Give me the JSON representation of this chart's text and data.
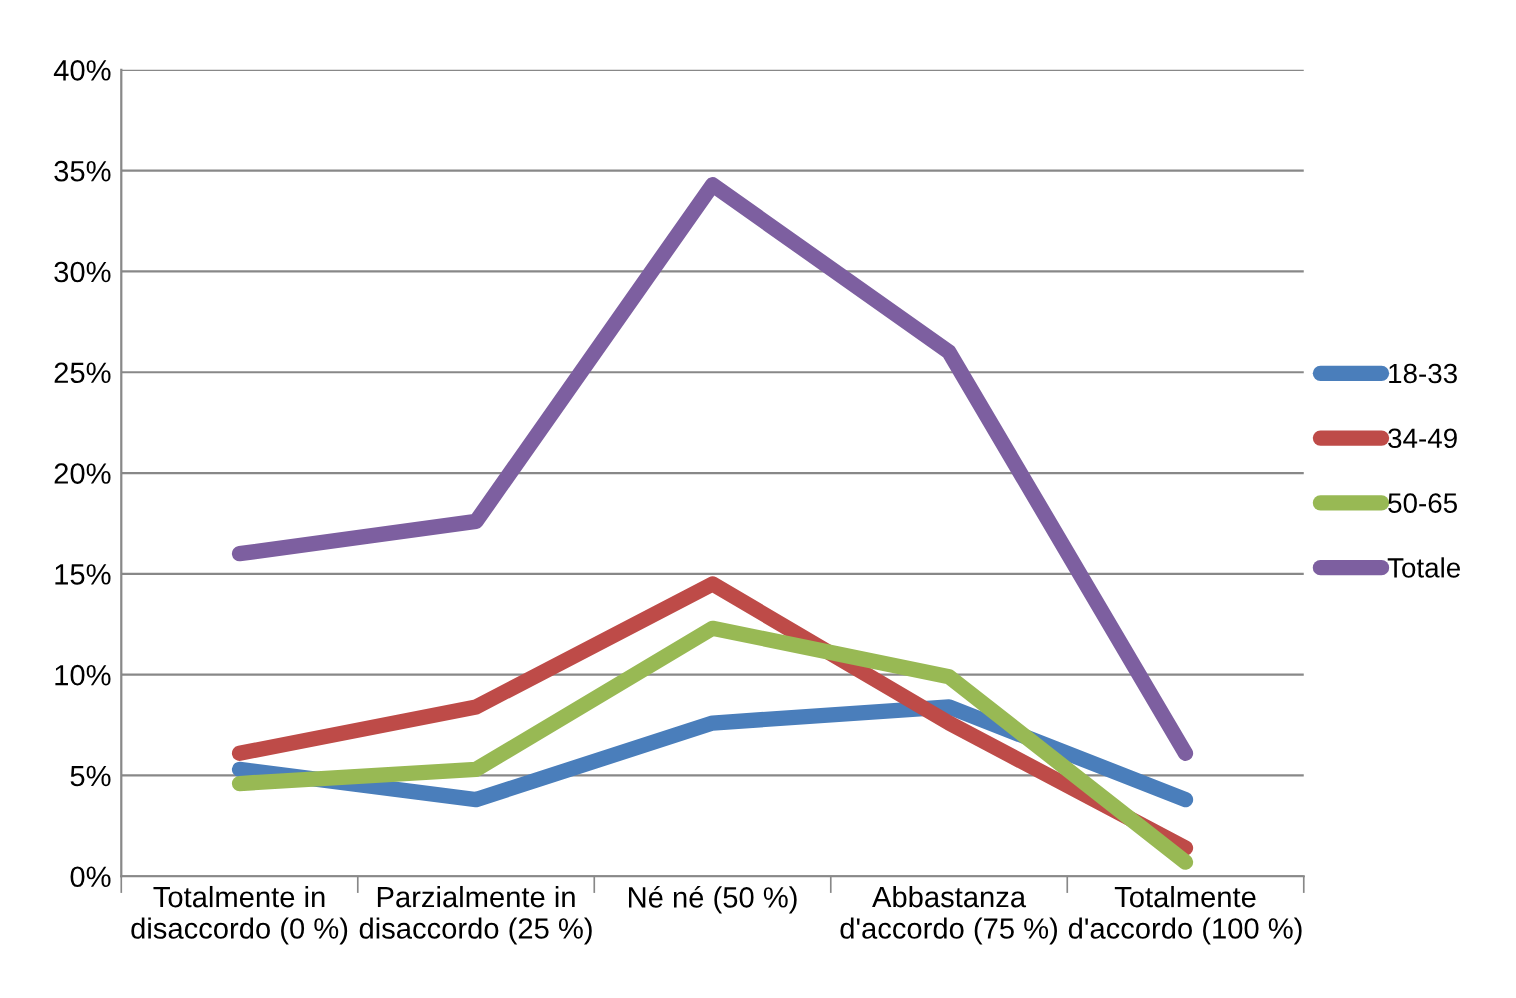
{
  "chart_data": {
    "type": "line",
    "categories": [
      "Totalmente in\ndisaccordo (0 %)",
      "Parzialmente in\ndisaccordo (25 %)",
      "Né né (50 %)",
      "Abbastanza\nd'accordo (75 %)",
      "Totalmente\nd'accordo (100 %)"
    ],
    "series": [
      {
        "name": "18-33",
        "color": "#4a7ebb",
        "values": [
          5.3,
          3.8,
          7.6,
          8.4,
          3.8
        ]
      },
      {
        "name": "34-49",
        "color": "#be4b48",
        "values": [
          6.1,
          8.4,
          14.5,
          7.6,
          1.4
        ]
      },
      {
        "name": "50-65",
        "color": "#98b954",
        "values": [
          4.6,
          5.3,
          12.3,
          9.9,
          0.7
        ]
      },
      {
        "name": "Totale",
        "color": "#7d5fa0",
        "values": [
          16,
          17.6,
          34.3,
          26,
          6.1
        ]
      }
    ],
    "ylim": [
      0,
      40
    ],
    "yticks": [
      {
        "value": 0,
        "label": "0%"
      },
      {
        "value": 5,
        "label": "5%"
      },
      {
        "value": 10,
        "label": "10%"
      },
      {
        "value": 15,
        "label": "15%"
      },
      {
        "value": 20,
        "label": "20%"
      },
      {
        "value": 25,
        "label": "25%"
      },
      {
        "value": 30,
        "label": "30%"
      },
      {
        "value": 35,
        "label": "35%"
      },
      {
        "value": 40,
        "label": "40%"
      }
    ],
    "grid": "y",
    "legend": "right",
    "marker": "none",
    "line_style": "solid"
  }
}
